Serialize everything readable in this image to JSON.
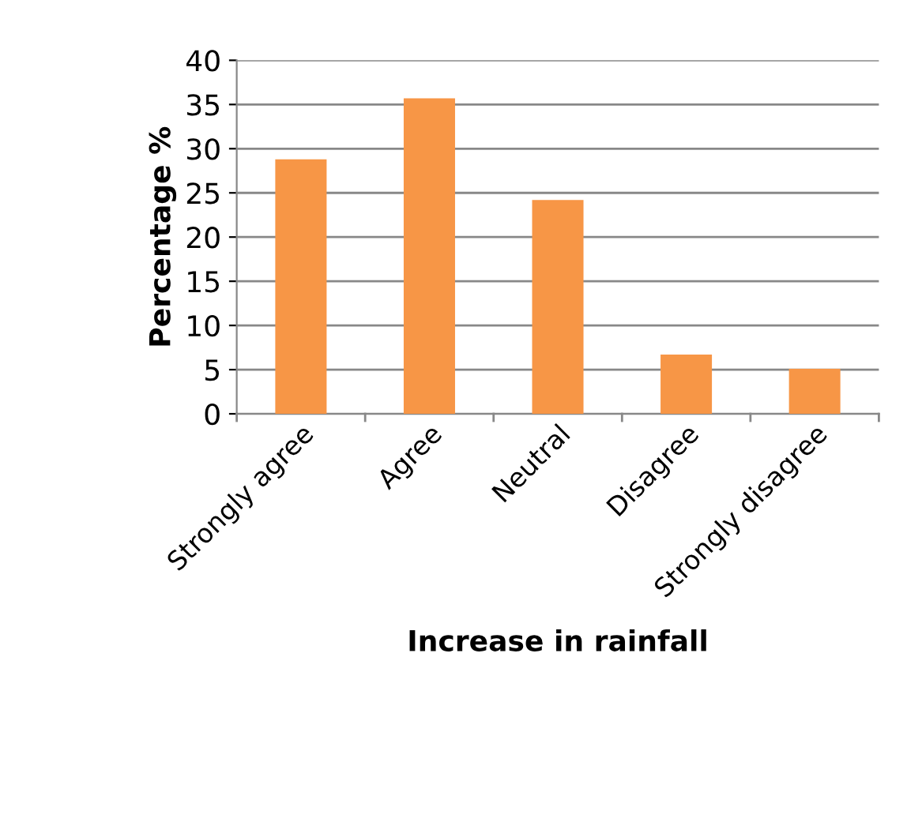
{
  "chart_data": {
    "type": "bar",
    "xlabel": "Increase in rainfall",
    "ylabel": "Percentage %",
    "categories": [
      "Strongly agree",
      "Agree",
      "Neutral",
      "Disagree",
      "Strongly disagree"
    ],
    "values": [
      28.8,
      35.7,
      24.2,
      6.7,
      5.1
    ],
    "color": "#f79646",
    "ylim": [
      0,
      40
    ],
    "yticks": [
      0,
      5,
      10,
      15,
      20,
      25,
      30,
      35,
      40
    ],
    "grid": "y",
    "legend": false
  }
}
